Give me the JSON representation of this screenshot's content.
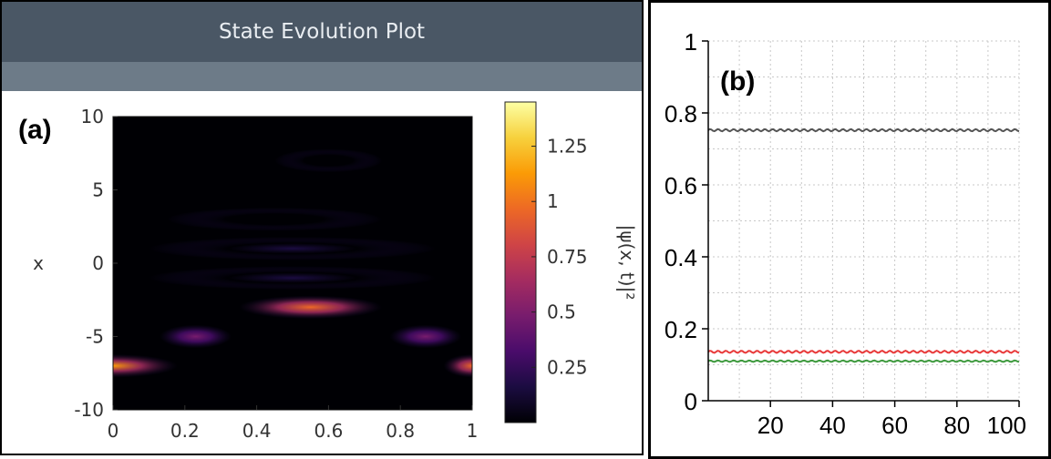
{
  "window": {
    "title": "State Evolution Plot"
  },
  "panel_labels": {
    "a": "(a)",
    "b": "(b)"
  },
  "chart_data": [
    {
      "type": "heatmap",
      "panel": "(a)",
      "title": "",
      "xlabel": "",
      "ylabel": "x",
      "xlim": [
        0,
        1
      ],
      "ylim": [
        -10,
        10
      ],
      "xticks": [
        0,
        0.2,
        0.4,
        0.6,
        0.8,
        1
      ],
      "xtick_labels": [
        "0",
        "0.2",
        "0.4",
        "0.6",
        "0.8",
        "1"
      ],
      "yticks": [
        10,
        5,
        0,
        -5,
        -10
      ],
      "ytick_labels": [
        "10",
        "5",
        "0",
        "-5",
        "-10"
      ],
      "colorbar": {
        "label": "|ψ(x, t)|²",
        "range": [
          0,
          1.45
        ],
        "ticks": [
          1.25,
          1,
          0.75,
          0.5,
          0.25
        ],
        "tick_labels": [
          "1.25",
          "1",
          "0.75",
          "0.5",
          "0.25"
        ],
        "colormap": [
          "#000004",
          "#1b0c41",
          "#4a0c6b",
          "#781c6d",
          "#a52c60",
          "#cf4446",
          "#ed6925",
          "#fb9b06",
          "#f7d13d",
          "#fcffa4"
        ]
      },
      "features": [
        {
          "x_center": 0.0,
          "x_width": 0.18,
          "y": -7,
          "amplitude": 1.05
        },
        {
          "x_center": 1.0,
          "x_width": 0.08,
          "y": -7,
          "amplitude": 1.0
        },
        {
          "x_center": 0.23,
          "x_width": 0.1,
          "y": -5,
          "amplitude": 0.55
        },
        {
          "x_center": 0.87,
          "x_width": 0.1,
          "y": -5,
          "amplitude": 0.42
        },
        {
          "x_center": 0.55,
          "x_width": 0.2,
          "y": -3,
          "amplitude": 0.95
        },
        {
          "x_center": 0.5,
          "x_width": 0.4,
          "y": -1,
          "amplitude": 0.12
        },
        {
          "x_center": 0.5,
          "x_width": 0.4,
          "y": 1,
          "amplitude": 0.1
        },
        {
          "x_center": 0.45,
          "x_width": 0.3,
          "y": 3,
          "amplitude": 0.08
        },
        {
          "x_center": 0.6,
          "x_width": 0.15,
          "y": 7,
          "amplitude": 0.06
        }
      ]
    },
    {
      "type": "line",
      "panel": "(b)",
      "title": "",
      "xlabel": "",
      "ylabel": "",
      "xlim": [
        0,
        100
      ],
      "ylim": [
        0,
        1
      ],
      "xticks": [
        20,
        40,
        60,
        80,
        100
      ],
      "xtick_labels": [
        "20",
        "40",
        "60",
        "80",
        "100"
      ],
      "yticks": [
        0,
        0.2,
        0.4,
        0.6,
        0.8,
        1
      ],
      "ytick_labels": [
        "0",
        "0.2",
        "0.4",
        "0.6",
        "0.8",
        "1"
      ],
      "grid": true,
      "series": [
        {
          "color": "#555555",
          "x": [
            0,
            100
          ],
          "y": [
            0.752,
            0.752
          ],
          "ripple": 0.003
        },
        {
          "color": "#e83a3a",
          "x": [
            0,
            100
          ],
          "y": [
            0.136,
            0.136
          ],
          "ripple": 0.003
        },
        {
          "color": "#3f9a3f",
          "x": [
            0,
            100
          ],
          "y": [
            0.11,
            0.11
          ],
          "ripple": 0.002
        }
      ]
    }
  ]
}
